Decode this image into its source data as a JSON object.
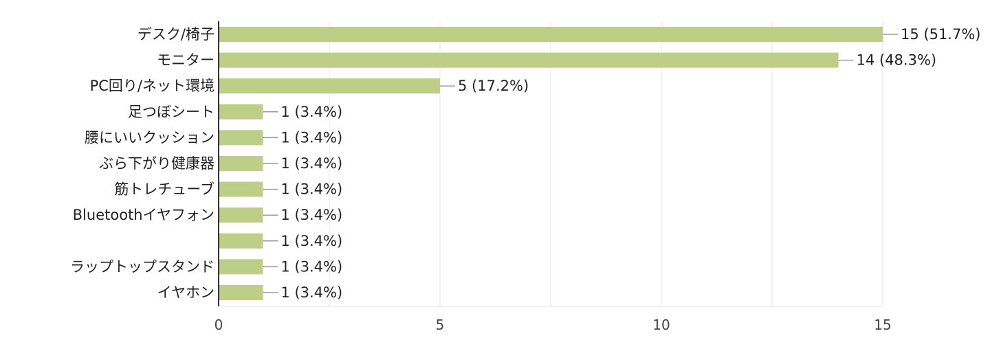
{
  "chart_data": {
    "type": "bar",
    "orientation": "horizontal",
    "title": "",
    "xlabel": "",
    "ylabel": "",
    "categories": [
      "デスク/椅子",
      "モニター",
      "PC回り/ネット環境",
      "足つぼシート",
      "腰にいいクッション",
      "ぶら下がり健康器",
      "筋トレチューブ",
      "Bluetoothイヤフォン",
      "",
      "ラップトップスタンド",
      "イヤホン"
    ],
    "values": [
      15,
      14,
      5,
      1,
      1,
      1,
      1,
      1,
      1,
      1,
      1
    ],
    "value_labels": [
      "15 (51.7%)",
      "14 (48.3%)",
      "5 (17.2%)",
      "1 (3.4%)",
      "1 (3.4%)",
      "1 (3.4%)",
      "1 (3.4%)",
      "1 (3.4%)",
      "1 (3.4%)",
      "1 (3.4%)",
      "1 (3.4%)"
    ],
    "xlim": [
      0,
      15
    ],
    "ticks": [
      0,
      5,
      10,
      15
    ],
    "tick_labels": [
      "0",
      "5",
      "10",
      "15"
    ],
    "grid": true,
    "legend": "none",
    "bar_color": "#bdcf87",
    "axis_color": "#333333",
    "grid_color": "#e6e6e6",
    "leader_color": "#999999"
  }
}
